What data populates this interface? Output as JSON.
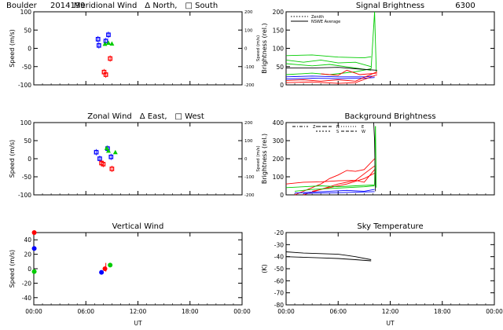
{
  "figure": {
    "site": "Boulder",
    "date": "2014199",
    "xlabel": "UT",
    "colors": {
      "north": "#0000ff",
      "south": "#ff0000",
      "zenith": "#00cc00",
      "black": "#000000",
      "west": "#0000ff",
      "east": "#ff0000"
    }
  },
  "chart_data": [
    {
      "id": "meridional",
      "type": "scatter",
      "title": "Meridional Wind",
      "title_parts": [
        "Meridional Wind",
        "Δ North,",
        "□ South"
      ],
      "ylabel": "Speed (m/s)",
      "y2label": "Speed (m/s)",
      "ylim": [
        -100,
        100
      ],
      "yticks": [
        -100,
        -50,
        0,
        50,
        100
      ],
      "y2lim": [
        -200,
        200
      ],
      "y2ticks": [
        -200,
        -100,
        0,
        100,
        200
      ],
      "xlim": [
        0,
        24
      ],
      "xticks": [
        0,
        6,
        12,
        18,
        24
      ],
      "xticklabels": [],
      "series": [
        {
          "color": "blue",
          "marker": "square",
          "points": [
            [
              7.4,
              25
            ],
            [
              7.5,
              8
            ],
            [
              8.3,
              20
            ],
            [
              8.6,
              37
            ]
          ]
        },
        {
          "color": "red",
          "marker": "square",
          "points": [
            [
              8.1,
              -65
            ],
            [
              8.3,
              -72
            ],
            [
              8.8,
              -28
            ]
          ]
        },
        {
          "color": "green",
          "marker": "triangle",
          "points": [
            [
              8.2,
              12
            ],
            [
              8.6,
              15
            ],
            [
              9.0,
              13
            ]
          ]
        }
      ]
    },
    {
      "id": "signal",
      "type": "line",
      "title": "Signal Brightness",
      "wavelength": "6300",
      "ylabel": "Brightness (rel.)",
      "ylim": [
        0,
        200
      ],
      "yticks": [
        0,
        50,
        100,
        150,
        200
      ],
      "xlim": [
        0,
        24
      ],
      "xticks": [
        0,
        6,
        12,
        18,
        24
      ],
      "xticklabels": [],
      "legend": [
        "Zenith",
        "NSWE Average"
      ],
      "series": [
        {
          "color": "green",
          "lines": [
            [
              [
                0,
                80
              ],
              [
                3,
                82
              ],
              [
                6,
                76
              ],
              [
                9,
                74
              ],
              [
                9.8,
                77
              ]
            ],
            [
              [
                0,
                68
              ],
              [
                2,
                62
              ],
              [
                4,
                68
              ],
              [
                6,
                60
              ],
              [
                8,
                62
              ],
              [
                9.8,
                50
              ]
            ],
            [
              [
                0,
                58
              ],
              [
                3,
                52
              ],
              [
                5,
                56
              ],
              [
                8,
                46
              ],
              [
                9.8,
                40
              ]
            ],
            [
              [
                0,
                28
              ],
              [
                3,
                32
              ],
              [
                5,
                28
              ],
              [
                8,
                36
              ],
              [
                9.8,
                44
              ]
            ],
            [
              [
                9.8,
                44
              ],
              [
                10.2,
                200
              ]
            ],
            [
              [
                10.2,
                200
              ],
              [
                10.4,
                35
              ]
            ]
          ]
        },
        {
          "color": "blue",
          "lines": [
            [
              [
                0,
                22
              ],
              [
                3,
                24
              ],
              [
                6,
                22
              ],
              [
                9,
                22
              ],
              [
                10.2,
                24
              ]
            ],
            [
              [
                0,
                16
              ],
              [
                3,
                18
              ],
              [
                6,
                17
              ],
              [
                9,
                18
              ],
              [
                10.2,
                20
              ]
            ]
          ]
        },
        {
          "color": "red",
          "lines": [
            [
              [
                0,
                12
              ],
              [
                2,
                14
              ],
              [
                4,
                10
              ],
              [
                6,
                14
              ],
              [
                8,
                10
              ],
              [
                10.5,
                36
              ]
            ],
            [
              [
                0,
                6
              ],
              [
                3,
                8
              ],
              [
                6,
                4
              ],
              [
                8,
                6
              ],
              [
                10.5,
                28
              ]
            ],
            [
              [
                4,
                30
              ],
              [
                6,
                26
              ],
              [
                7,
                40
              ],
              [
                8.5,
                28
              ],
              [
                10.5,
                32
              ]
            ]
          ]
        },
        {
          "color": "black",
          "lines": [
            [
              [
                0,
                46
              ],
              [
                3,
                46
              ],
              [
                6,
                48
              ],
              [
                8,
                44
              ],
              [
                10.5,
                40
              ]
            ]
          ]
        }
      ]
    },
    {
      "id": "zonal",
      "type": "scatter",
      "title": "Zonal Wind",
      "title_parts": [
        "Zonal Wind",
        "Δ East,",
        "□ West"
      ],
      "ylabel": "Speed (m/s)",
      "y2label": "Speed (m/s)",
      "ylim": [
        -100,
        100
      ],
      "yticks": [
        -100,
        -50,
        0,
        50,
        100
      ],
      "y2lim": [
        -200,
        200
      ],
      "y2ticks": [
        -200,
        -100,
        0,
        100,
        200
      ],
      "xlim": [
        0,
        24
      ],
      "xticks": [
        0,
        6,
        12,
        18,
        24
      ],
      "xticklabels": [],
      "series": [
        {
          "color": "blue",
          "marker": "square",
          "points": [
            [
              7.2,
              18
            ],
            [
              7.6,
              0
            ],
            [
              8.5,
              28
            ],
            [
              8.9,
              5
            ]
          ]
        },
        {
          "color": "red",
          "marker": "square",
          "points": [
            [
              7.8,
              -12
            ],
            [
              8.0,
              -15
            ],
            [
              9.0,
              -28
            ]
          ]
        },
        {
          "color": "green",
          "marker": "triangle",
          "points": [
            [
              8.4,
              30
            ],
            [
              9.4,
              18
            ],
            [
              8.6,
              22
            ]
          ]
        }
      ]
    },
    {
      "id": "background",
      "type": "line",
      "title": "Background Brightness",
      "ylabel": "Brightness (rel.)",
      "ylim": [
        0,
        400
      ],
      "yticks": [
        0,
        100,
        200,
        300,
        400
      ],
      "xlim": [
        0,
        24
      ],
      "xticks": [
        0,
        6,
        12,
        18,
        24
      ],
      "xticklabels": [],
      "legend": [
        "Z",
        "N",
        "S",
        "E",
        "W"
      ],
      "series": [
        {
          "color": "red",
          "lines": [
            [
              [
                0,
                60
              ],
              [
                2,
                70
              ],
              [
                4,
                72
              ],
              [
                6,
                78
              ],
              [
                8,
                80
              ],
              [
                9,
                70
              ],
              [
                10.2,
                140
              ]
            ],
            [
              [
                1,
                0
              ],
              [
                2,
                20
              ],
              [
                3,
                40
              ],
              [
                4,
                60
              ],
              [
                5,
                90
              ],
              [
                6,
                110
              ],
              [
                7,
                135
              ],
              [
                8,
                130
              ],
              [
                9,
                140
              ],
              [
                10.2,
                200
              ]
            ],
            [
              [
                2,
                0
              ],
              [
                4,
                30
              ],
              [
                6,
                60
              ],
              [
                8,
                80
              ],
              [
                10.2,
                160
              ]
            ],
            [
              [
                3,
                20
              ],
              [
                5,
                40
              ],
              [
                7,
                60
              ],
              [
                9,
                90
              ],
              [
                10.2,
                120
              ]
            ]
          ]
        },
        {
          "color": "green",
          "lines": [
            [
              [
                0,
                40
              ],
              [
                2,
                45
              ],
              [
                4,
                50
              ],
              [
                6,
                45
              ],
              [
                8,
                50
              ],
              [
                10.2,
                55
              ]
            ],
            [
              [
                1,
                20
              ],
              [
                3,
                30
              ],
              [
                5,
                35
              ],
              [
                7,
                40
              ],
              [
                9,
                45
              ],
              [
                10.2,
                50
              ]
            ],
            [
              [
                10.2,
                55
              ],
              [
                10.3,
                380
              ]
            ],
            [
              [
                10.3,
                380
              ],
              [
                10.4,
                40
              ]
            ]
          ]
        },
        {
          "color": "blue",
          "lines": [
            [
              [
                1,
                10
              ],
              [
                3,
                15
              ],
              [
                5,
                20
              ],
              [
                7,
                25
              ],
              [
                9,
                20
              ],
              [
                10.2,
                30
              ]
            ],
            [
              [
                2,
                8
              ],
              [
                4,
                10
              ],
              [
                6,
                12
              ],
              [
                8,
                15
              ],
              [
                10.2,
                18
              ]
            ]
          ]
        },
        {
          "color": "black",
          "lines": [
            [
              [
                10.1,
                400
              ],
              [
                10.2,
                300
              ],
              [
                10.3,
                20
              ]
            ]
          ]
        }
      ]
    },
    {
      "id": "vertical",
      "type": "scatter",
      "title": "Vertical Wind",
      "ylabel": "Speed (m/s)",
      "ylim": [
        -50,
        50
      ],
      "yticks": [
        -40,
        -20,
        0,
        20,
        40
      ],
      "xlim": [
        0,
        24
      ],
      "xticks": [
        0,
        6,
        12,
        18,
        24
      ],
      "xticklabels": [
        "00:00",
        "06:00",
        "12:00",
        "18:00",
        "00:00"
      ],
      "series": [
        {
          "color": "blue",
          "marker": "circle",
          "points": [
            [
              0.05,
              28
            ],
            [
              7.8,
              -5
            ]
          ]
        },
        {
          "color": "red",
          "marker": "circle",
          "points": [
            [
              0.05,
              50
            ],
            [
              8.2,
              0
            ]
          ]
        },
        {
          "color": "green",
          "marker": "circle",
          "points": [
            [
              0.05,
              -4
            ],
            [
              8.8,
              5
            ]
          ]
        }
      ],
      "errorbars": [
        {
          "x": 8.3,
          "lo": -4,
          "hi": 8,
          "color": "red"
        }
      ]
    },
    {
      "id": "skytemp",
      "type": "line",
      "title": "Sky Temperature",
      "ylabel": "(K)",
      "ylim": [
        -80,
        -20
      ],
      "yticks": [
        -80,
        -70,
        -60,
        -50,
        -40,
        -30,
        -20
      ],
      "xlim": [
        0,
        24
      ],
      "xticks": [
        0,
        6,
        12,
        18,
        24
      ],
      "xticklabels": [
        "00:00",
        "06:00",
        "12:00",
        "18:00",
        "00:00"
      ],
      "series": [
        {
          "color": "black",
          "lines": [
            [
              [
                0,
                -36
              ],
              [
                2,
                -37
              ],
              [
                4,
                -37.5
              ],
              [
                6,
                -38
              ],
              [
                7,
                -39
              ],
              [
                8,
                -40
              ],
              [
                9.8,
                -42.5
              ]
            ],
            [
              [
                0,
                -40
              ],
              [
                2,
                -40.5
              ],
              [
                4,
                -41
              ],
              [
                6,
                -41.5
              ],
              [
                8,
                -42.5
              ],
              [
                9.8,
                -43.5
              ]
            ]
          ]
        }
      ]
    }
  ]
}
